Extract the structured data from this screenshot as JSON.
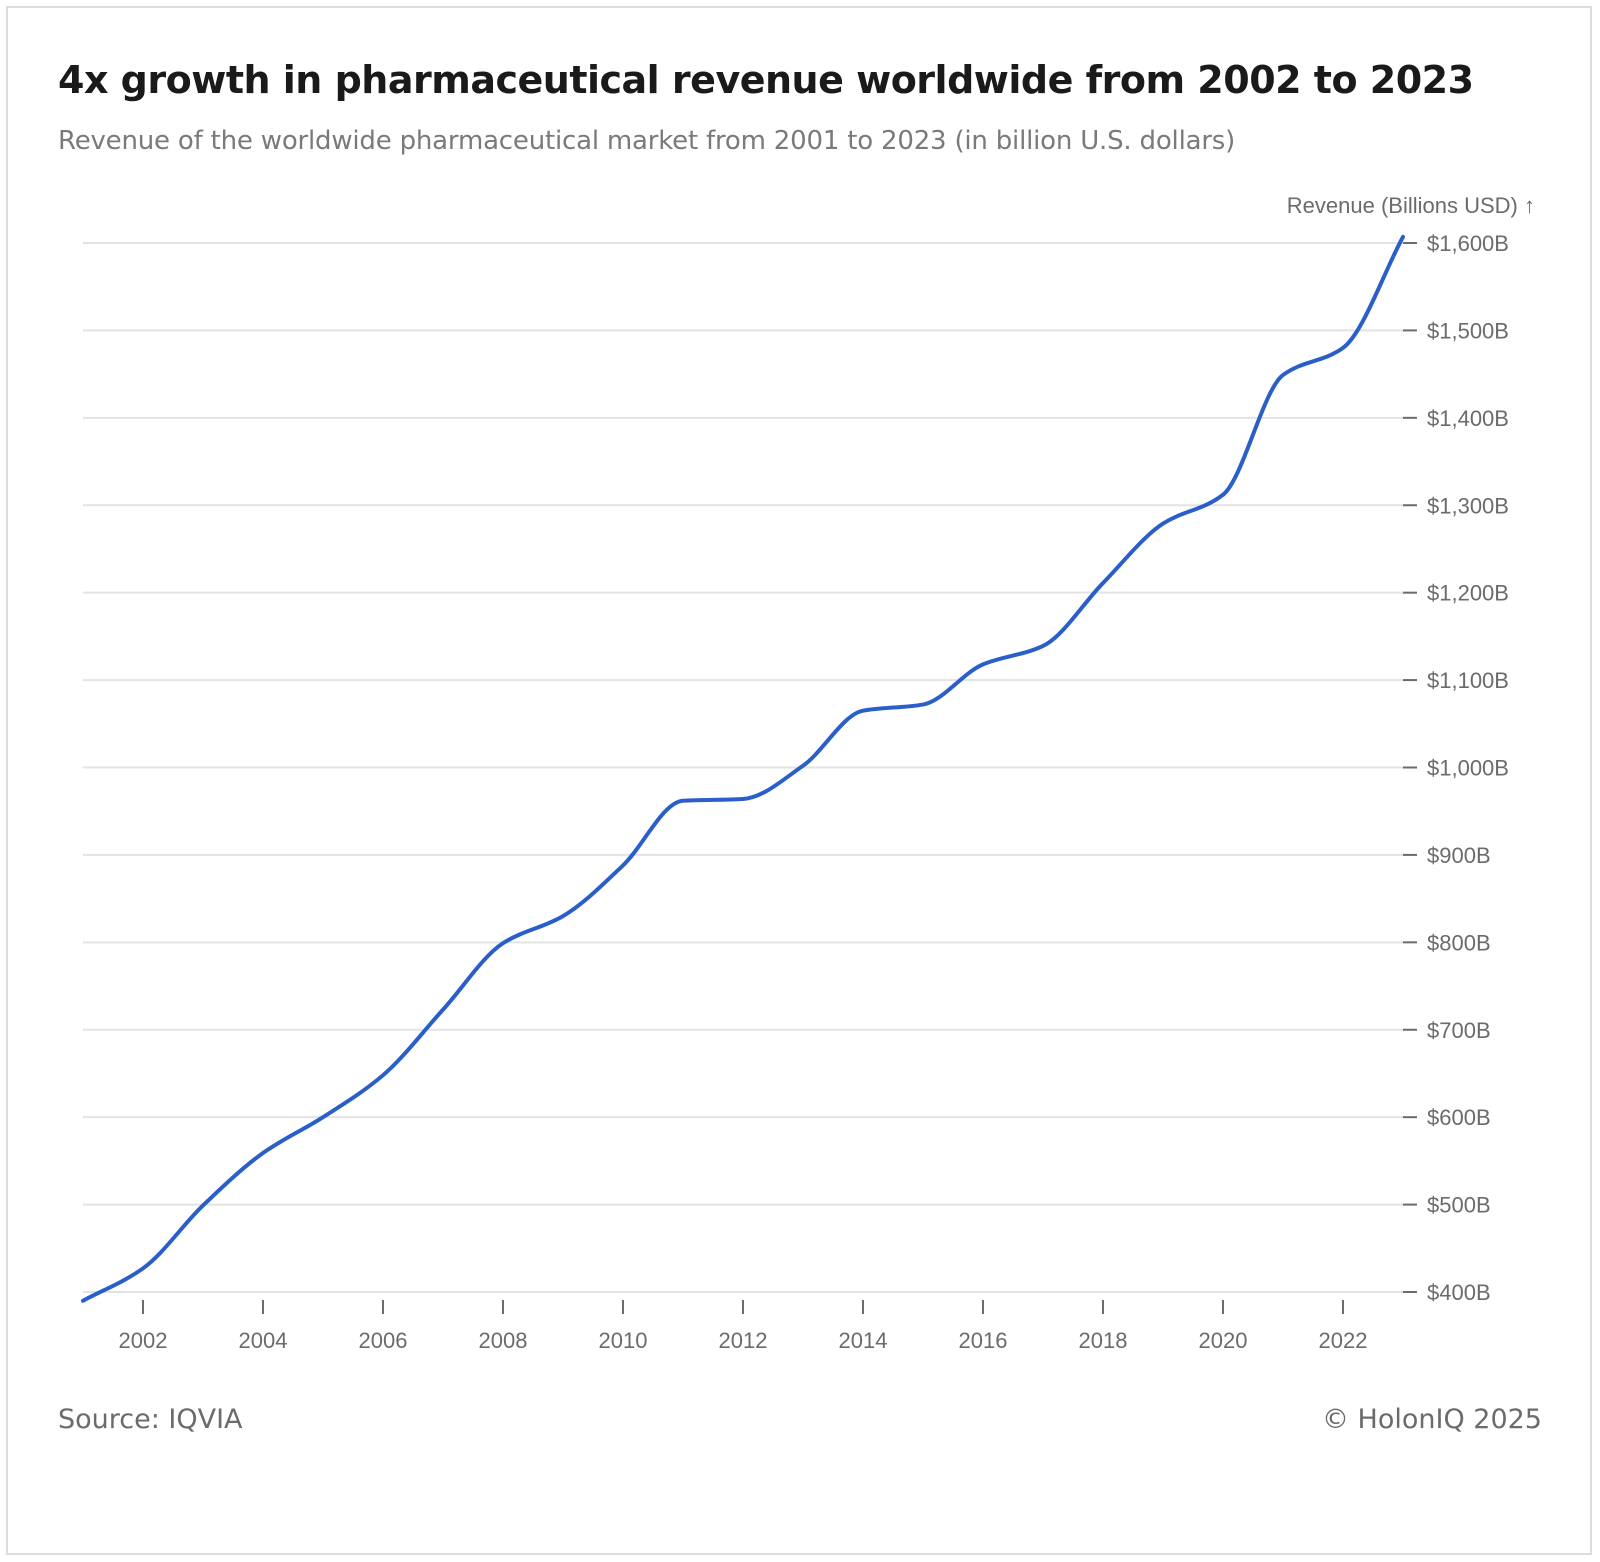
{
  "header": {
    "title": "4x growth in pharmaceutical revenue worldwide from 2002 to 2023",
    "subtitle": "Revenue of the worldwide pharmaceutical market from 2001 to 2023 (in billion U.S. dollars)"
  },
  "footer": {
    "source": "Source: IQVIA",
    "copyright": "© HolonIQ 2025"
  },
  "colors": {
    "line": "#2a5fc9",
    "grid": "#e3e3e3",
    "tick": "#6b6b6b"
  },
  "chart_data": {
    "type": "line",
    "title": "4x growth in pharmaceutical revenue worldwide from 2002 to 2023",
    "subtitle": "Revenue of the worldwide pharmaceutical market from 2001 to 2023 (in billion U.S. dollars)",
    "ylabel": "Revenue (Billions USD) ↑",
    "xlabel": "",
    "y_axis_position": "right",
    "grid": true,
    "xlim": [
      2001,
      2023
    ],
    "ylim": [
      400,
      1600
    ],
    "x_ticks": [
      2002,
      2004,
      2006,
      2008,
      2010,
      2012,
      2014,
      2016,
      2018,
      2020,
      2022
    ],
    "x_tick_labels": [
      "2002",
      "2004",
      "2006",
      "2008",
      "2010",
      "2012",
      "2014",
      "2016",
      "2018",
      "2020",
      "2022"
    ],
    "y_ticks": [
      400,
      500,
      600,
      700,
      800,
      900,
      1000,
      1100,
      1200,
      1300,
      1400,
      1500,
      1600
    ],
    "y_tick_labels": [
      "$400B",
      "$500B",
      "$600B",
      "$700B",
      "$800B",
      "$900B",
      "$1,000B",
      "$1,100B",
      "$1,200B",
      "$1,300B",
      "$1,400B",
      "$1,500B",
      "$1,600B"
    ],
    "x": [
      2001,
      2002,
      2003,
      2004,
      2005,
      2006,
      2007,
      2008,
      2009,
      2010,
      2011,
      2012,
      2013,
      2014,
      2015,
      2016,
      2017,
      2018,
      2019,
      2020,
      2021,
      2022,
      2023
    ],
    "series": [
      {
        "values": [
          390,
          427,
          499,
          559,
          600,
          648,
          723,
          799,
          830,
          888,
          962,
          964,
          1002,
          1065,
          1072,
          1118,
          1139,
          1211,
          1279,
          1312,
          1449,
          1480,
          1607
        ]
      }
    ]
  }
}
